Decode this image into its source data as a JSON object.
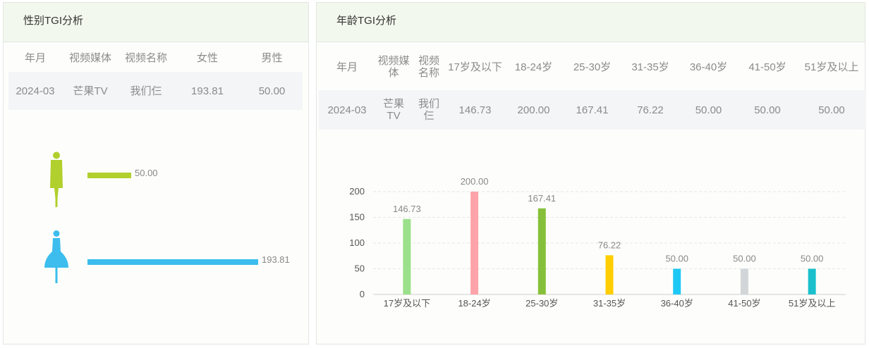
{
  "gender_panel": {
    "title": "性别TGI分析",
    "columns": [
      "年月",
      "视频媒体",
      "视频名称",
      "女性",
      "男性"
    ],
    "row": [
      "2024-03",
      "芒果TV",
      "我们仨",
      "193.81",
      "50.00"
    ],
    "bars": [
      {
        "name": "男性",
        "icon": "male-figure-icon",
        "value": 50.0,
        "label": "50.00",
        "color": "#b1cf2d"
      },
      {
        "name": "女性",
        "icon": "female-figure-icon",
        "value": 193.81,
        "label": "193.81",
        "color": "#3cbdee"
      }
    ]
  },
  "age_panel": {
    "title": "年龄TGI分析",
    "columns": [
      "年月",
      "视频媒体",
      "视频名称",
      "17岁及以下",
      "18-24岁",
      "25-30岁",
      "31-35岁",
      "36-40岁",
      "41-50岁",
      "51岁及以上"
    ],
    "row": [
      "2024-03",
      "芒果TV",
      "我们仨",
      "146.73",
      "200.00",
      "167.41",
      "76.22",
      "50.00",
      "50.00",
      "50.00"
    ]
  },
  "chart_data": {
    "type": "bar",
    "categories": [
      "17岁及以下",
      "18-24岁",
      "25-30岁",
      "31-35岁",
      "36-40岁",
      "41-50岁",
      "51岁及以上"
    ],
    "values": [
      146.73,
      200.0,
      167.41,
      76.22,
      50.0,
      50.0,
      50.0
    ],
    "value_labels": [
      "146.73",
      "200.00",
      "167.41",
      "76.22",
      "50.00",
      "50.00",
      "50.00"
    ],
    "colors": [
      "#9be08a",
      "#ffa3aa",
      "#86c03a",
      "#ffcd00",
      "#1ec8f5",
      "#d3d6d9",
      "#1bc0cc"
    ],
    "yticks": [
      0,
      50,
      100,
      150,
      200
    ],
    "ylim": [
      0,
      200
    ],
    "grid": true
  }
}
